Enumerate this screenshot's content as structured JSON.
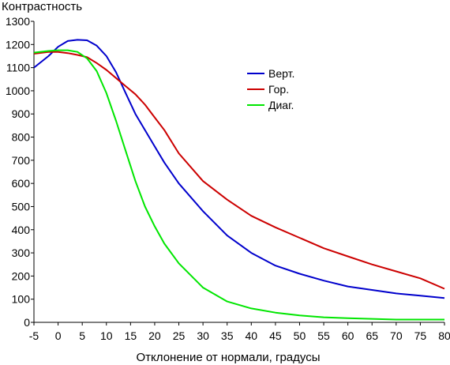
{
  "chart_data": {
    "type": "line",
    "title": "",
    "ylabel": "Контрастность",
    "xlabel": "Отклонение от нормали, градусы",
    "xlim": [
      -5,
      80
    ],
    "ylim": [
      0,
      1300
    ],
    "x_ticks": [
      -5,
      0,
      5,
      10,
      15,
      20,
      25,
      30,
      35,
      40,
      45,
      50,
      55,
      60,
      65,
      70,
      75,
      80
    ],
    "y_ticks": [
      0,
      100,
      200,
      300,
      400,
      500,
      600,
      700,
      800,
      900,
      1000,
      1100,
      1200,
      1300
    ],
    "grid": false,
    "legend_position": "top-right",
    "series": [
      {
        "name": "Верт.",
        "color": "#0000cc",
        "points": [
          [
            -5,
            1100
          ],
          [
            -2,
            1150
          ],
          [
            0,
            1190
          ],
          [
            2,
            1215
          ],
          [
            4,
            1220
          ],
          [
            6,
            1218
          ],
          [
            8,
            1195
          ],
          [
            10,
            1150
          ],
          [
            12,
            1080
          ],
          [
            14,
            990
          ],
          [
            16,
            900
          ],
          [
            18,
            830
          ],
          [
            20,
            760
          ],
          [
            22,
            690
          ],
          [
            25,
            600
          ],
          [
            30,
            480
          ],
          [
            35,
            375
          ],
          [
            40,
            300
          ],
          [
            45,
            245
          ],
          [
            50,
            210
          ],
          [
            55,
            180
          ],
          [
            60,
            155
          ],
          [
            65,
            140
          ],
          [
            70,
            125
          ],
          [
            75,
            115
          ],
          [
            80,
            105
          ]
        ]
      },
      {
        "name": "Гор.",
        "color": "#cc0000",
        "points": [
          [
            -5,
            1160
          ],
          [
            -2,
            1168
          ],
          [
            0,
            1168
          ],
          [
            2,
            1163
          ],
          [
            4,
            1155
          ],
          [
            6,
            1145
          ],
          [
            8,
            1120
          ],
          [
            10,
            1090
          ],
          [
            12,
            1055
          ],
          [
            14,
            1020
          ],
          [
            16,
            985
          ],
          [
            18,
            940
          ],
          [
            20,
            885
          ],
          [
            22,
            830
          ],
          [
            25,
            730
          ],
          [
            30,
            610
          ],
          [
            35,
            530
          ],
          [
            40,
            460
          ],
          [
            45,
            410
          ],
          [
            50,
            365
          ],
          [
            55,
            320
          ],
          [
            60,
            285
          ],
          [
            65,
            250
          ],
          [
            70,
            220
          ],
          [
            75,
            190
          ],
          [
            80,
            145
          ]
        ]
      },
      {
        "name": "Диаг.",
        "color": "#00e600",
        "points": [
          [
            -5,
            1165
          ],
          [
            -2,
            1172
          ],
          [
            0,
            1175
          ],
          [
            2,
            1175
          ],
          [
            4,
            1168
          ],
          [
            6,
            1140
          ],
          [
            8,
            1085
          ],
          [
            10,
            990
          ],
          [
            12,
            870
          ],
          [
            14,
            740
          ],
          [
            16,
            610
          ],
          [
            18,
            500
          ],
          [
            20,
            415
          ],
          [
            22,
            340
          ],
          [
            25,
            255
          ],
          [
            30,
            150
          ],
          [
            35,
            90
          ],
          [
            40,
            60
          ],
          [
            45,
            42
          ],
          [
            50,
            30
          ],
          [
            55,
            22
          ],
          [
            60,
            18
          ],
          [
            65,
            15
          ],
          [
            70,
            12
          ],
          [
            75,
            12
          ],
          [
            80,
            12
          ]
        ]
      }
    ]
  }
}
